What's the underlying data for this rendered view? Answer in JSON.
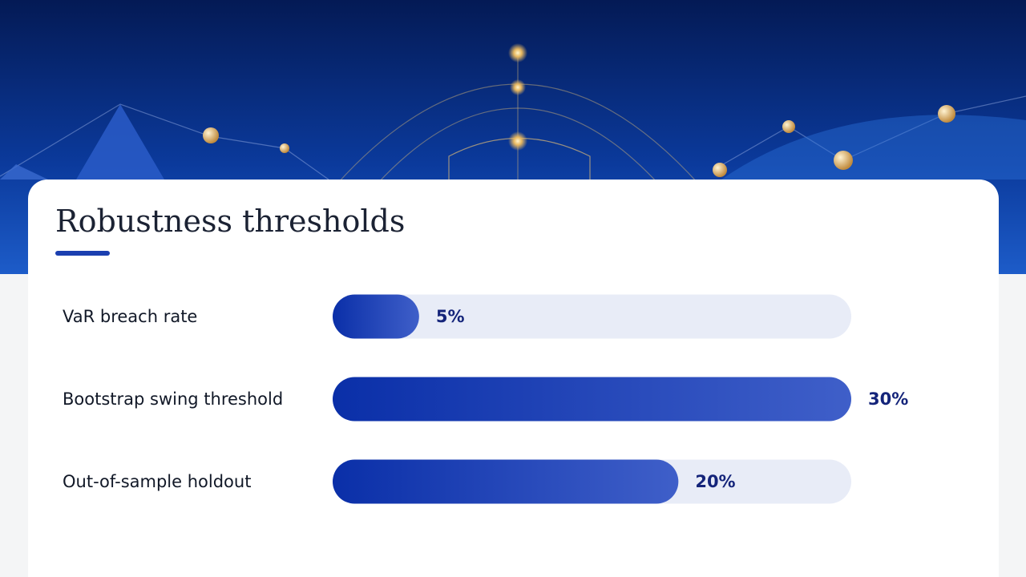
{
  "chart_data": {
    "type": "bar",
    "orientation": "horizontal",
    "title": "Robustness thresholds",
    "categories": [
      "VaR breach rate",
      "Bootstrap swing threshold",
      "Out-of-sample holdout"
    ],
    "values": [
      5,
      30,
      20
    ],
    "value_labels": [
      "5%",
      "30%",
      "20%"
    ],
    "xlim": [
      0,
      30
    ],
    "color": "#0a2fa8",
    "track_color": "#e8ecf7"
  }
}
